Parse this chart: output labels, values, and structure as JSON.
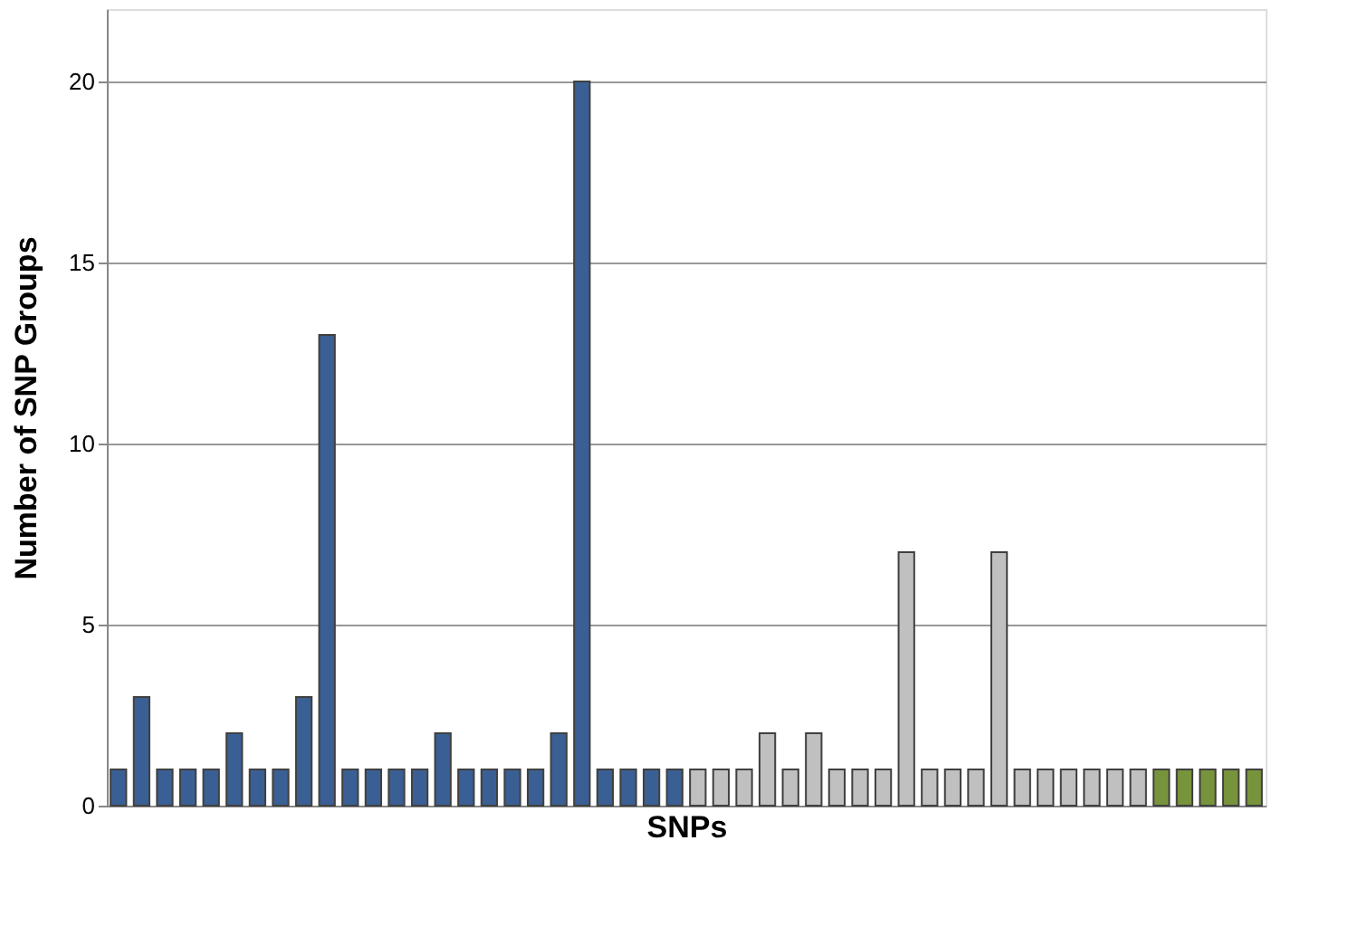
{
  "chart_data": {
    "type": "bar",
    "xlabel": "SNPs",
    "ylabel": "Number of SNP Groups",
    "categories": [
      null,
      null,
      null,
      null,
      null,
      null,
      null,
      null,
      null,
      null,
      null,
      null,
      null,
      null,
      null,
      null,
      null,
      null,
      null,
      null,
      null,
      null,
      null,
      null,
      null,
      null,
      null,
      null,
      null,
      null,
      null,
      null,
      null,
      null,
      null,
      null,
      null,
      null,
      null,
      null,
      null,
      null,
      null,
      null,
      null,
      null,
      null,
      null,
      null,
      null
    ],
    "values": [
      1,
      3,
      1,
      1,
      1,
      2,
      1,
      1,
      3,
      13,
      1,
      1,
      1,
      1,
      2,
      1,
      1,
      1,
      1,
      2,
      20,
      1,
      1,
      1,
      1,
      1,
      1,
      1,
      2,
      1,
      2,
      1,
      1,
      1,
      7,
      1,
      1,
      1,
      7,
      1,
      1,
      1,
      1,
      1,
      1,
      1,
      1,
      1,
      1,
      1
    ],
    "colors": [
      "#3a5f94",
      "#3a5f94",
      "#3a5f94",
      "#3a5f94",
      "#3a5f94",
      "#3a5f94",
      "#3a5f94",
      "#3a5f94",
      "#3a5f94",
      "#3a5f94",
      "#3a5f94",
      "#3a5f94",
      "#3a5f94",
      "#3a5f94",
      "#3a5f94",
      "#3a5f94",
      "#3a5f94",
      "#3a5f94",
      "#3a5f94",
      "#3a5f94",
      "#3a5f94",
      "#3a5f94",
      "#3a5f94",
      "#3a5f94",
      "#3a5f94",
      "#c0c0c0",
      "#c0c0c0",
      "#c0c0c0",
      "#c0c0c0",
      "#c0c0c0",
      "#c0c0c0",
      "#c0c0c0",
      "#c0c0c0",
      "#c0c0c0",
      "#c0c0c0",
      "#c0c0c0",
      "#c0c0c0",
      "#c0c0c0",
      "#c0c0c0",
      "#c0c0c0",
      "#c0c0c0",
      "#c0c0c0",
      "#c0c0c0",
      "#c0c0c0",
      "#c0c0c0",
      "#77933c",
      "#77933c",
      "#77933c",
      "#77933c",
      "#77933c"
    ],
    "ylim": [
      0,
      22
    ],
    "yticks": [
      0,
      5,
      10,
      15,
      20
    ],
    "grid": "y",
    "tick_labels": "y"
  }
}
